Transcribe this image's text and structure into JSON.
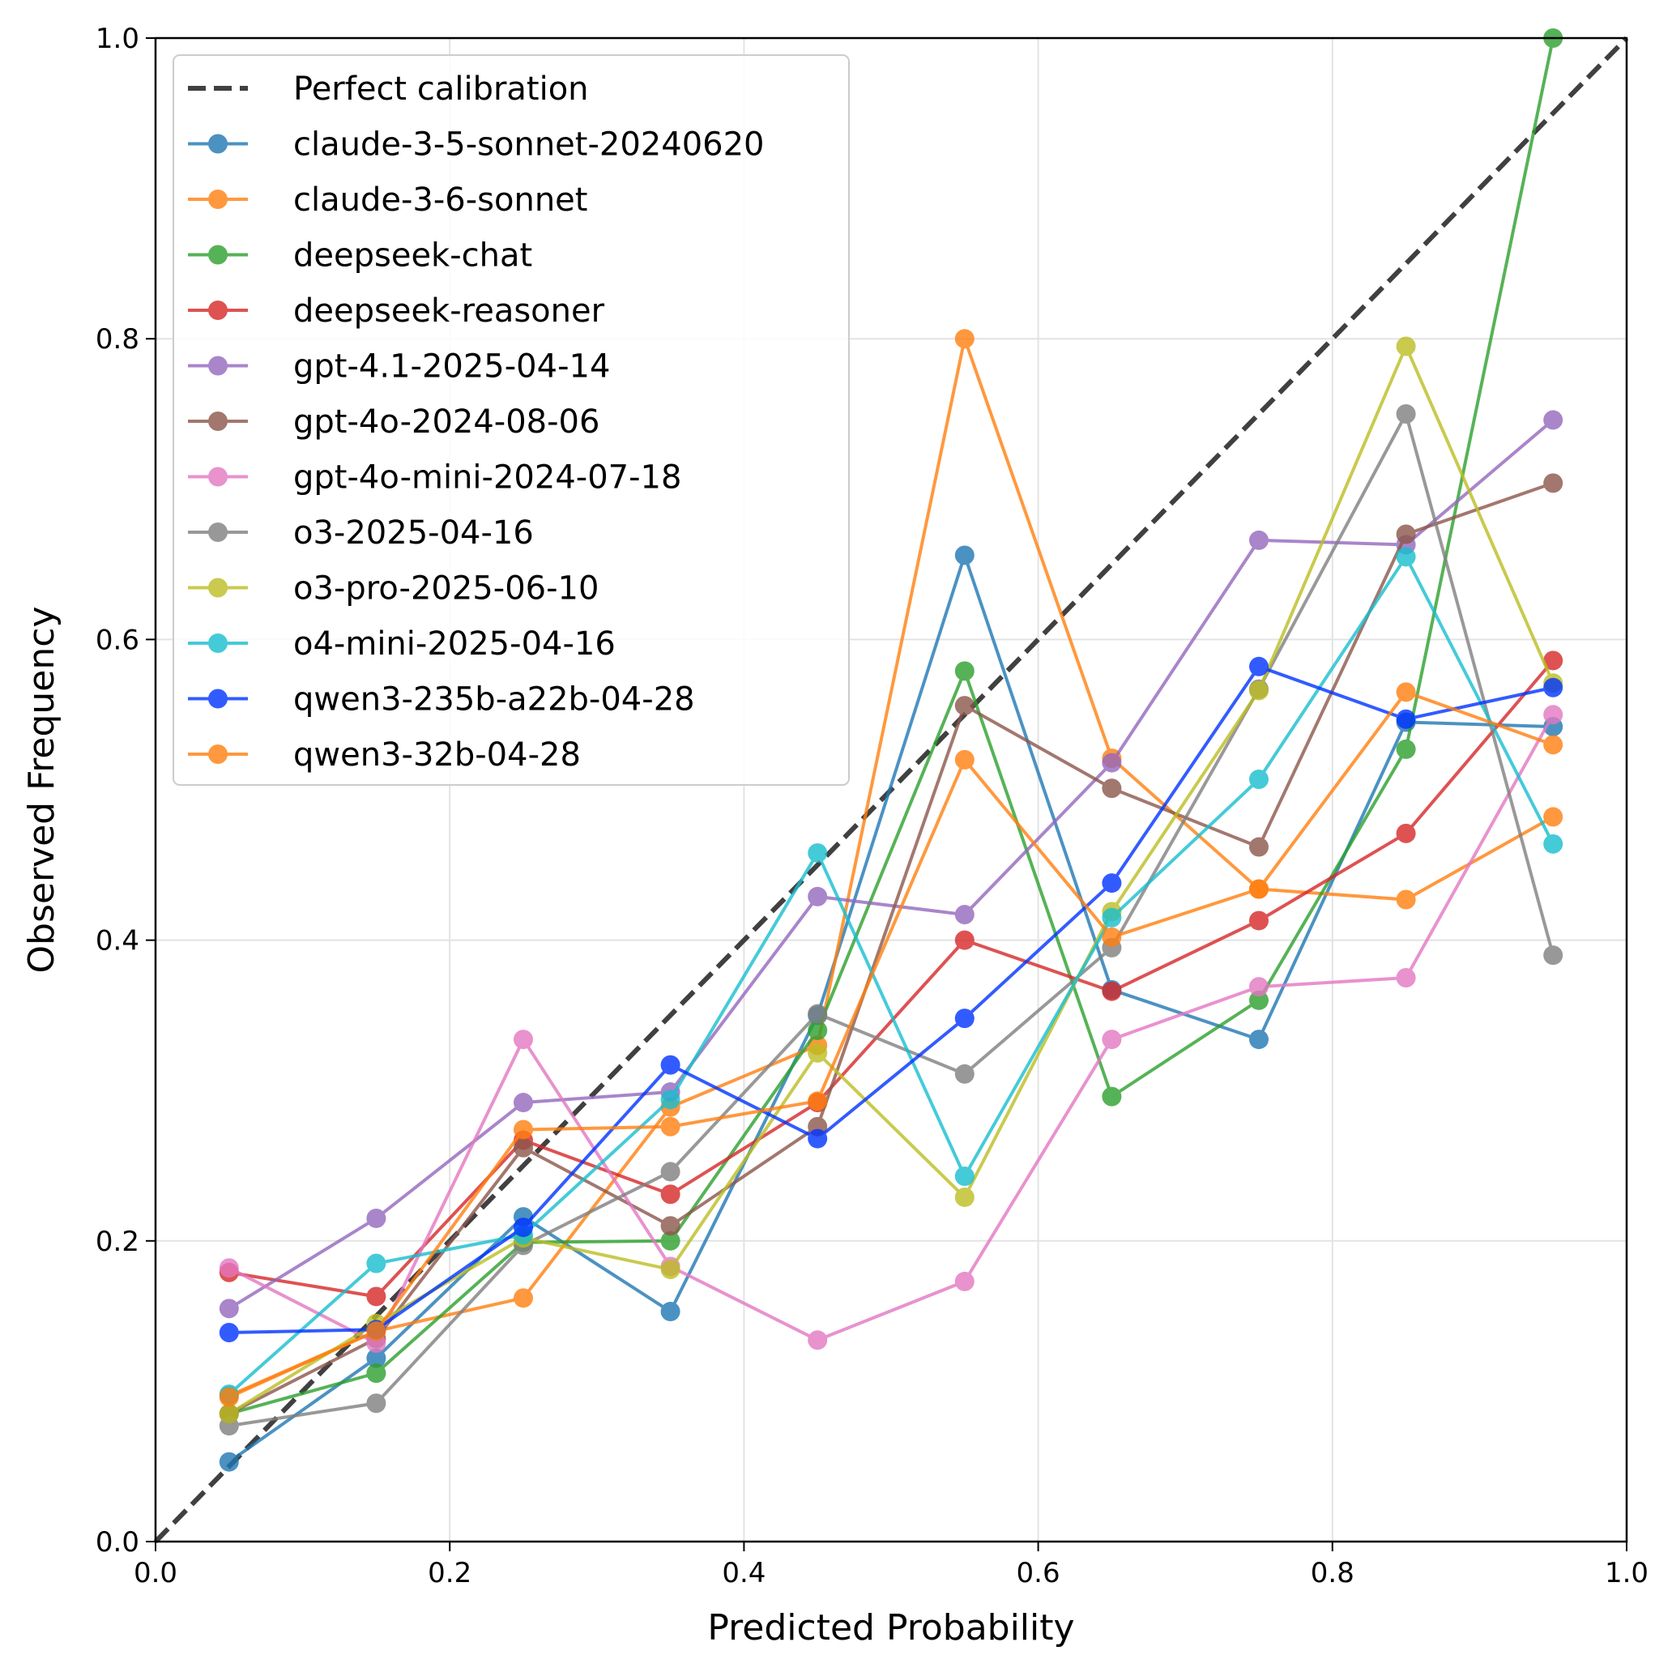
{
  "chart_data": {
    "type": "line",
    "title": "",
    "xlabel": "Predicted Probability",
    "ylabel": "Observed Frequency",
    "xlim": [
      0.0,
      1.0
    ],
    "ylim": [
      0.0,
      1.0
    ],
    "xticks": [
      "0.0",
      "0.2",
      "0.4",
      "0.6",
      "0.8",
      "1.0"
    ],
    "yticks": [
      "0.0",
      "0.2",
      "0.4",
      "0.6",
      "0.8",
      "1.0"
    ],
    "grid": true,
    "legend_position": "upper-left",
    "reference_line": {
      "name": "Perfect calibration",
      "color": "#404040",
      "x": [
        0,
        1
      ],
      "y": [
        0,
        1
      ]
    },
    "x": [
      0.05,
      0.15,
      0.25,
      0.35,
      0.45,
      0.55,
      0.65,
      0.75,
      0.85,
      0.95
    ],
    "series": [
      {
        "name": "claude-3-5-sonnet-20240620",
        "color": "#1f77b4",
        "values": [
          0.053,
          0.122,
          0.216,
          0.153,
          0.35,
          0.656,
          0.367,
          0.334,
          0.545,
          0.542
        ]
      },
      {
        "name": "claude-3-6-sonnet",
        "color": "#ff7f0e",
        "values": [
          0.097,
          0.14,
          0.162,
          0.289,
          0.33,
          0.8,
          0.521,
          0.434,
          0.427,
          0.482
        ]
      },
      {
        "name": "deepseek-chat",
        "color": "#2ca02c",
        "values": [
          0.085,
          0.112,
          0.199,
          0.2,
          0.34,
          0.579,
          0.296,
          0.36,
          0.527,
          1.0
        ]
      },
      {
        "name": "deepseek-reasoner",
        "color": "#d62728",
        "values": [
          0.179,
          0.163,
          0.267,
          0.231,
          0.292,
          0.4,
          0.366,
          0.413,
          0.471,
          0.586
        ]
      },
      {
        "name": "gpt-4.1-2025-04-14",
        "color": "#9467bd",
        "values": [
          0.155,
          0.215,
          0.292,
          0.299,
          0.429,
          0.417,
          0.518,
          0.666,
          0.663,
          0.746
        ]
      },
      {
        "name": "gpt-4o-2024-08-06",
        "color": "#8c564b",
        "values": [
          0.085,
          0.135,
          0.262,
          0.21,
          0.276,
          0.556,
          0.501,
          0.462,
          0.67,
          0.704
        ]
      },
      {
        "name": "gpt-4o-mini-2024-07-18",
        "color": "#e377c2",
        "values": [
          0.182,
          0.132,
          0.334,
          0.183,
          0.134,
          0.173,
          0.334,
          0.369,
          0.375,
          0.55
        ]
      },
      {
        "name": "o3-2025-04-16",
        "color": "#7f7f7f",
        "values": [
          0.077,
          0.092,
          0.197,
          0.246,
          0.351,
          0.311,
          0.395,
          0.567,
          0.75,
          0.39
        ]
      },
      {
        "name": "o3-pro-2025-06-10",
        "color": "#bcbd22",
        "values": [
          0.085,
          0.145,
          0.202,
          0.181,
          0.325,
          0.229,
          0.419,
          0.566,
          0.795,
          0.571
        ]
      },
      {
        "name": "o4-mini-2025-04-16",
        "color": "#17becf",
        "values": [
          0.098,
          0.185,
          0.204,
          0.294,
          0.458,
          0.243,
          0.415,
          0.507,
          0.655,
          0.464
        ]
      },
      {
        "name": "qwen3-235b-a22b-04-28",
        "color": "#0033ff",
        "values": [
          0.139,
          0.141,
          0.209,
          0.317,
          0.268,
          0.348,
          0.438,
          0.582,
          0.547,
          0.568
        ]
      },
      {
        "name": "qwen3-32b-04-28",
        "color": "#ff7f0e",
        "values": [
          0.096,
          0.14,
          0.274,
          0.276,
          0.293,
          0.52,
          0.402,
          0.434,
          0.565,
          0.53
        ]
      }
    ]
  }
}
